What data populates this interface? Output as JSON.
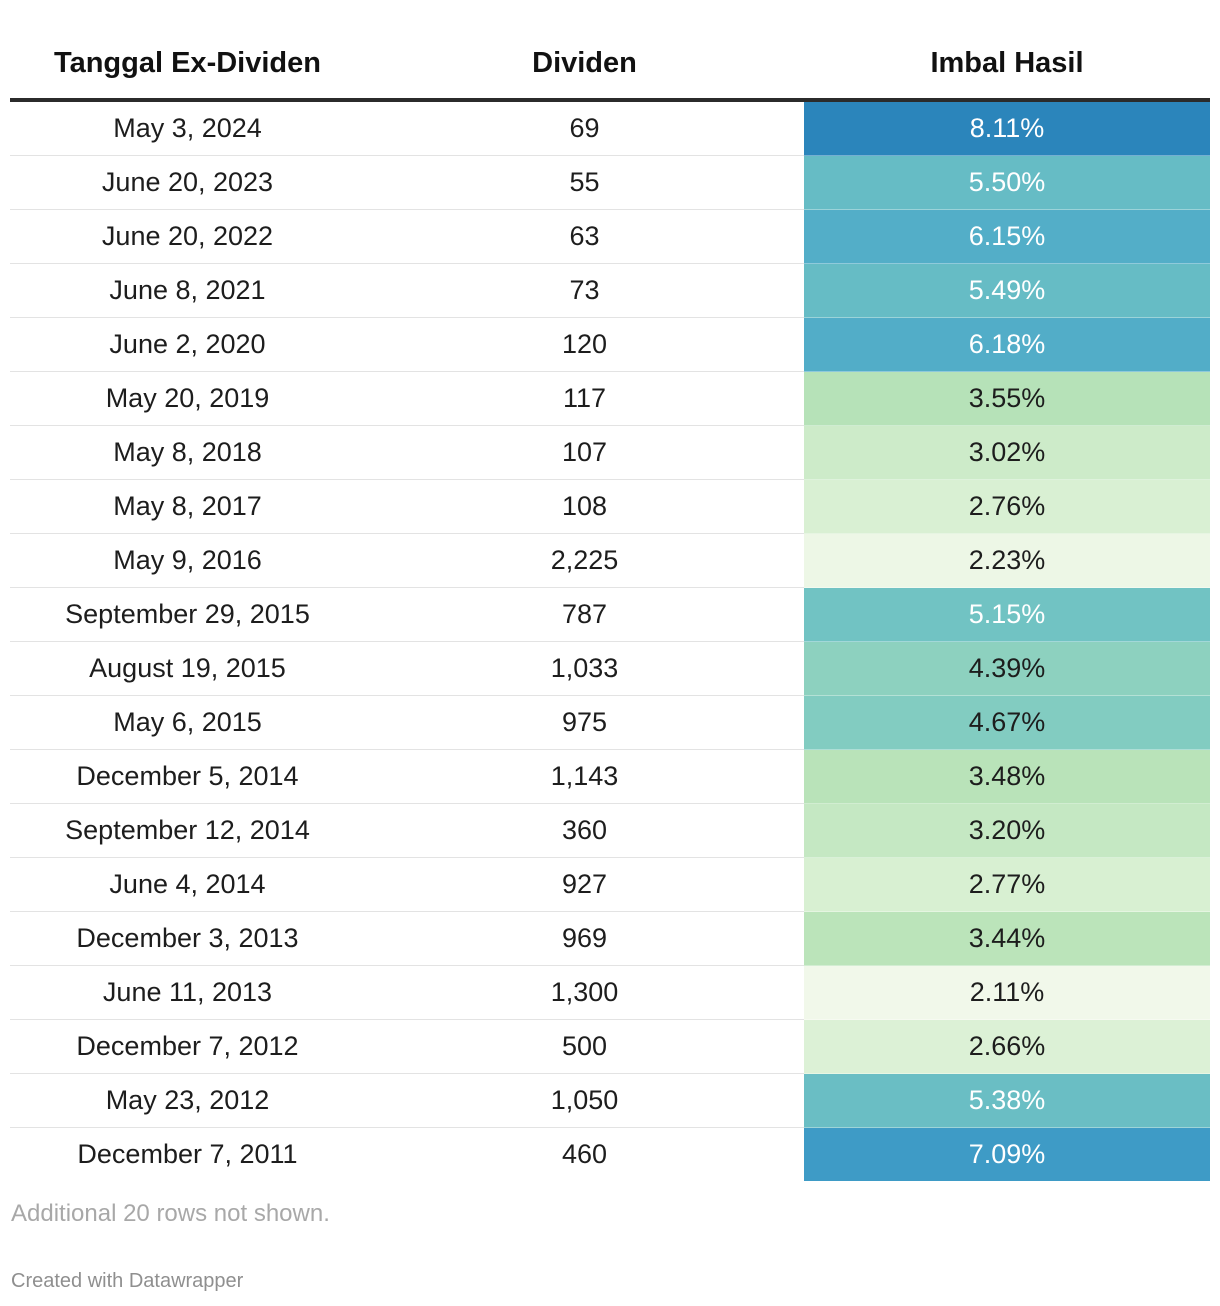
{
  "chart_data": {
    "type": "table",
    "columns": [
      "Tanggal Ex-Dividen",
      "Dividen",
      "Imbal Hasil"
    ],
    "rows": [
      {
        "date": "May 3, 2024",
        "dividend": "69",
        "yield": "8.11%",
        "yield_value": 8.11
      },
      {
        "date": "June 20, 2023",
        "dividend": "55",
        "yield": "5.50%",
        "yield_value": 5.5
      },
      {
        "date": "June 20, 2022",
        "dividend": "63",
        "yield": "6.15%",
        "yield_value": 6.15
      },
      {
        "date": "June 8, 2021",
        "dividend": "73",
        "yield": "5.49%",
        "yield_value": 5.49
      },
      {
        "date": "June 2, 2020",
        "dividend": "120",
        "yield": "6.18%",
        "yield_value": 6.18
      },
      {
        "date": "May 20, 2019",
        "dividend": "117",
        "yield": "3.55%",
        "yield_value": 3.55
      },
      {
        "date": "May 8, 2018",
        "dividend": "107",
        "yield": "3.02%",
        "yield_value": 3.02
      },
      {
        "date": "May 8, 2017",
        "dividend": "108",
        "yield": "2.76%",
        "yield_value": 2.76
      },
      {
        "date": "May 9, 2016",
        "dividend": "2,225",
        "yield": "2.23%",
        "yield_value": 2.23
      },
      {
        "date": "September 29, 2015",
        "dividend": "787",
        "yield": "5.15%",
        "yield_value": 5.15
      },
      {
        "date": "August 19, 2015",
        "dividend": "1,033",
        "yield": "4.39%",
        "yield_value": 4.39
      },
      {
        "date": "May 6, 2015",
        "dividend": "975",
        "yield": "4.67%",
        "yield_value": 4.67
      },
      {
        "date": "December 5, 2014",
        "dividend": "1,143",
        "yield": "3.48%",
        "yield_value": 3.48
      },
      {
        "date": "September 12, 2014",
        "dividend": "360",
        "yield": "3.20%",
        "yield_value": 3.2
      },
      {
        "date": "June 4, 2014",
        "dividend": "927",
        "yield": "2.77%",
        "yield_value": 2.77
      },
      {
        "date": "December 3, 2013",
        "dividend": "969",
        "yield": "3.44%",
        "yield_value": 3.44
      },
      {
        "date": "June 11, 2013",
        "dividend": "1,300",
        "yield": "2.11%",
        "yield_value": 2.11
      },
      {
        "date": "December 7, 2012",
        "dividend": "500",
        "yield": "2.66%",
        "yield_value": 2.66
      },
      {
        "date": "May 23, 2012",
        "dividend": "1,050",
        "yield": "5.38%",
        "yield_value": 5.38
      },
      {
        "date": "December 7, 2011",
        "dividend": "460",
        "yield": "7.09%",
        "yield_value": 7.09
      }
    ],
    "color_scale": {
      "stops": [
        {
          "value": 2.11,
          "color": "#f1f8ea"
        },
        {
          "value": 2.75,
          "color": "#d9f0d3"
        },
        {
          "value": 3.5,
          "color": "#b8e3b8"
        },
        {
          "value": 4.5,
          "color": "#88cfc0"
        },
        {
          "value": 5.3,
          "color": "#6cc0c4"
        },
        {
          "value": 6.15,
          "color": "#53aec8"
        },
        {
          "value": 7.1,
          "color": "#3e9bc6"
        },
        {
          "value": 8.11,
          "color": "#2b85bb"
        }
      ],
      "light_text_color": "#ffffff",
      "dark_text_color": "#1d1d1d"
    },
    "footer_note": "Additional 20 rows not shown.",
    "credit": "Created with Datawrapper"
  }
}
